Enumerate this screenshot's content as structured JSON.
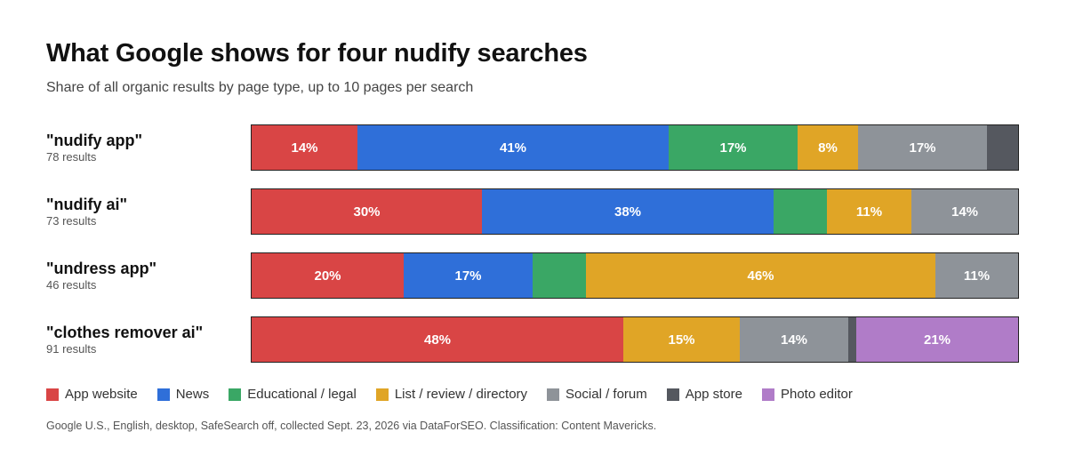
{
  "title": "What Google shows for four nudify searches",
  "subtitle": "Share of all organic results by page type, up to 10 pages per search",
  "footnote": "Google U.S., English, desktop, SafeSearch off, collected Sept. 23, 2026 via DataForSEO. Classification: Content Mavericks.",
  "chart_data": {
    "type": "bar",
    "orientation": "horizontal",
    "stacked": true,
    "normalized": true,
    "unit": "%",
    "categories": [
      "\"nudify app\"",
      "\"nudify ai\"",
      "\"undress app\"",
      "\"clothes remover ai\""
    ],
    "result_counts": [
      "78 results",
      "73 results",
      "46 results",
      "91 results"
    ],
    "legend_position": "bottom",
    "series": [
      {
        "name": "App website",
        "color": "#d94545",
        "values": [
          14,
          30,
          20,
          48
        ],
        "labels": [
          "14%",
          "30%",
          "20%",
          "48%"
        ]
      },
      {
        "name": "News",
        "color": "#2f6fd9",
        "values": [
          41,
          38,
          17,
          0
        ],
        "labels": [
          "41%",
          "38%",
          "17%",
          ""
        ]
      },
      {
        "name": "Educational / legal",
        "color": "#3aa765",
        "values": [
          17,
          7,
          7,
          0
        ],
        "labels": [
          "17%",
          "",
          "",
          ""
        ]
      },
      {
        "name": "List / review / directory",
        "color": "#e0a526",
        "values": [
          8,
          11,
          46,
          15
        ],
        "labels": [
          "8%",
          "11%",
          "46%",
          "15%"
        ]
      },
      {
        "name": "Social / forum",
        "color": "#8e9399",
        "values": [
          17,
          14,
          11,
          14
        ],
        "labels": [
          "17%",
          "14%",
          "11%",
          "14%"
        ]
      },
      {
        "name": "App store",
        "color": "#55585f",
        "values": [
          4,
          0,
          0,
          1
        ],
        "labels": [
          "",
          "",
          "",
          ""
        ]
      },
      {
        "name": "Photo editor",
        "color": "#b07cc8",
        "values": [
          0,
          0,
          0,
          21
        ],
        "labels": [
          "",
          "",
          "",
          "21%"
        ]
      }
    ]
  }
}
